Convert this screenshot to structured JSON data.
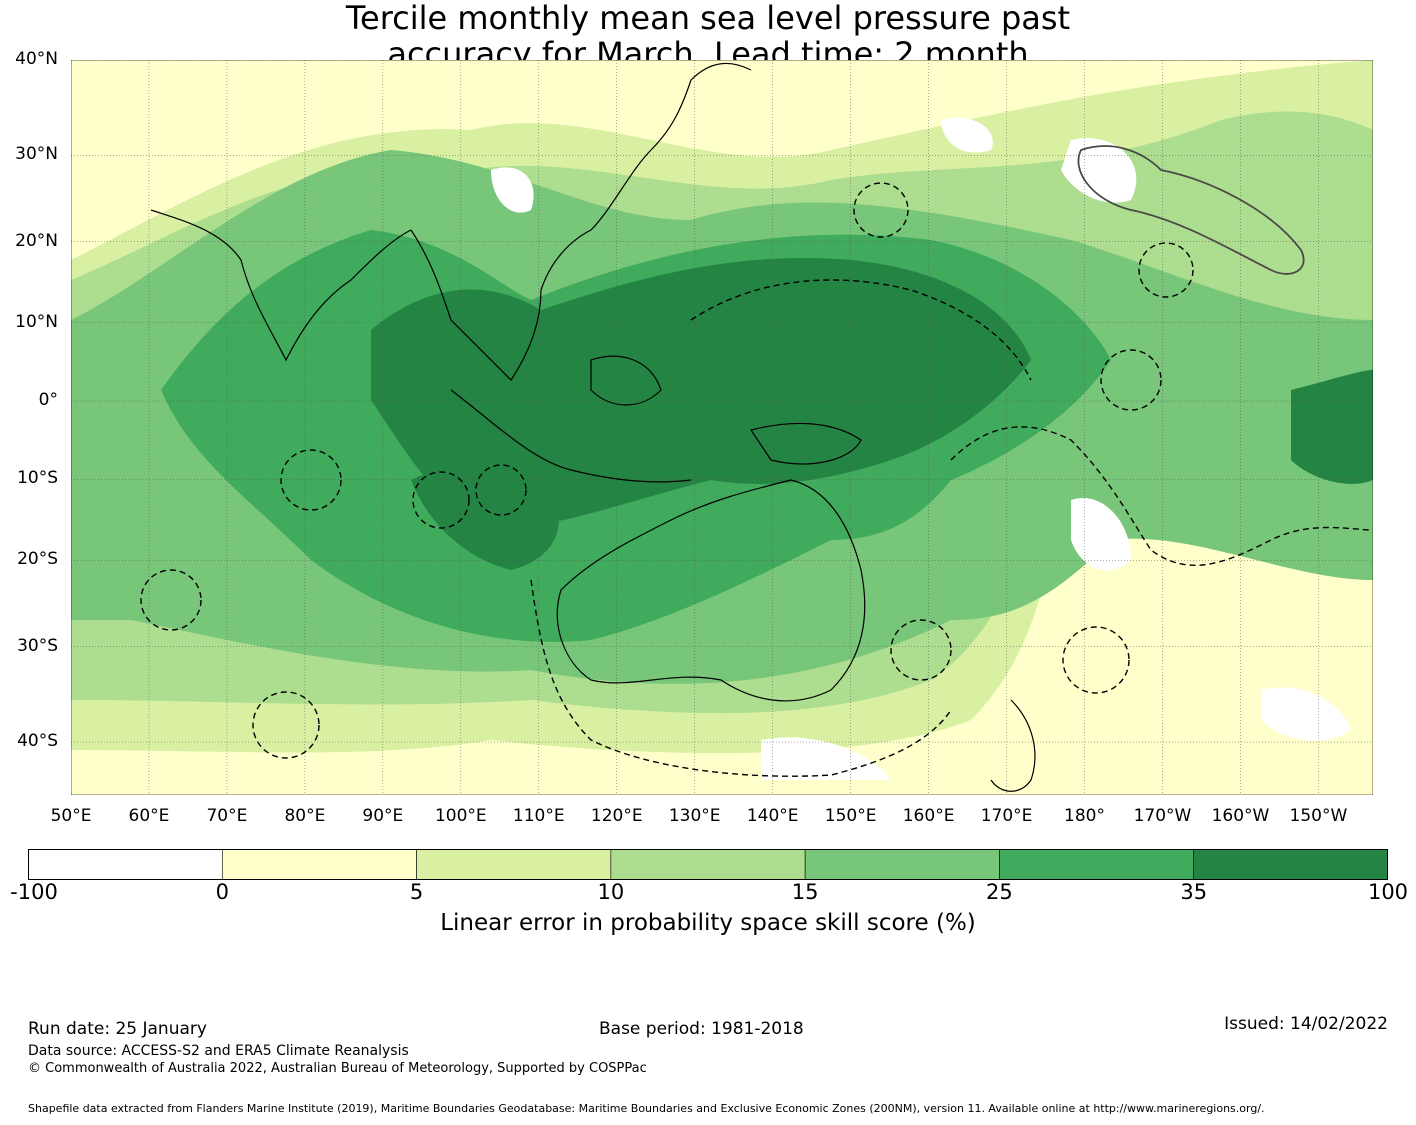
{
  "title_line1": "Tercile monthly mean sea level pressure past",
  "title_line2": "accuracy for March. Lead time: 2 month",
  "lat_labels": [
    {
      "label": "40°N",
      "value": 40
    },
    {
      "label": "30°N",
      "value": 30
    },
    {
      "label": "20°N",
      "value": 20
    },
    {
      "label": "10°N",
      "value": 10
    },
    {
      "label": "0°",
      "value": 0
    },
    {
      "label": "10°S",
      "value": -10
    },
    {
      "label": "20°S",
      "value": -20
    },
    {
      "label": "30°S",
      "value": -30
    },
    {
      "label": "40°S",
      "value": -40
    }
  ],
  "lon_labels": [
    {
      "label": "50°E",
      "value": 50
    },
    {
      "label": "60°E",
      "value": 60
    },
    {
      "label": "70°E",
      "value": 70
    },
    {
      "label": "80°E",
      "value": 80
    },
    {
      "label": "90°E",
      "value": 90
    },
    {
      "label": "100°E",
      "value": 100
    },
    {
      "label": "110°E",
      "value": 110
    },
    {
      "label": "120°E",
      "value": 120
    },
    {
      "label": "130°E",
      "value": 130
    },
    {
      "label": "140°E",
      "value": 140
    },
    {
      "label": "150°E",
      "value": 150
    },
    {
      "label": "160°E",
      "value": 160
    },
    {
      "label": "170°E",
      "value": 170
    },
    {
      "label": "180°",
      "value": 180
    },
    {
      "label": "170°W",
      "value": 190
    },
    {
      "label": "160°W",
      "value": 200
    },
    {
      "label": "150°W",
      "value": 210
    }
  ],
  "map_extent": {
    "lon": [
      50,
      217
    ],
    "lat": [
      -45,
      40
    ]
  },
  "colorbar": {
    "ticks": [
      "-100",
      "0",
      "5",
      "10",
      "15",
      "25",
      "35",
      "100"
    ],
    "colors": [
      "#ffffff",
      "#ffffcc",
      "#d9f0a3",
      "#addd8e",
      "#78c679",
      "#41ab5d",
      "#238443"
    ],
    "label": "Linear error in probability space skill score (%)"
  },
  "footer": {
    "run_date": "Run date: 25 January",
    "base_period": "Base period: 1981-2018",
    "issued": "Issued: 14/02/2022",
    "data_source": "Data source: ACCESS-S2 and ERA5 Climate Reanalysis",
    "copyright": "© Commonwealth of Australia 2022, Australian Bureau of Meteorology, Supported by COSPPac",
    "shapefile": "Shapefile data extracted from Flanders Marine Institute (2019), Maritime Boundaries Geodatabase: Maritime Boundaries and Exclusive Economic Zones (200NM), version 11. Available online at http://www.marineregions.org/."
  }
}
